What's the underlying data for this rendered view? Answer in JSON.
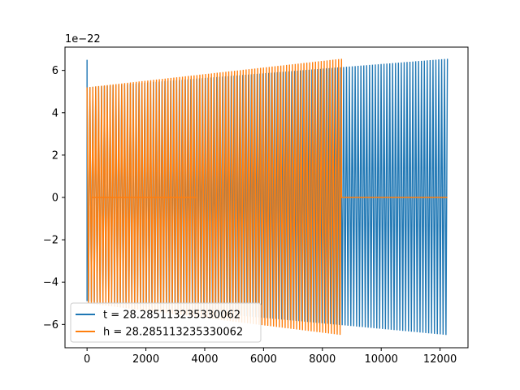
{
  "chart_data": {
    "type": "line",
    "title": "",
    "xlabel": "",
    "ylabel": "",
    "offset_text": "1e−22",
    "xlim": [
      -750,
      12950
    ],
    "ylim": [
      -7.1e-22,
      7.1e-22
    ],
    "xticks": [
      0,
      2000,
      4000,
      6000,
      8000,
      10000,
      12000
    ],
    "xtick_labels": [
      "0",
      "2000",
      "4000",
      "6000",
      "8000",
      "10000",
      "12000"
    ],
    "yticks": [
      -6e-22,
      -4e-22,
      -2e-22,
      0,
      2e-22,
      4e-22,
      6e-22
    ],
    "ytick_labels": [
      "−6",
      "−4",
      "−2",
      "0",
      "2",
      "4",
      "6"
    ],
    "grid": false,
    "legend_position": "lower left",
    "series": [
      {
        "name": "t = 28.285113235330062",
        "color": "#1f77b4",
        "description_points": {
          "x_start": 0,
          "x_end": 12250,
          "initial_spike": 6.5e-22,
          "envelope_start": 5.2e-22,
          "envelope_end": 6.55e-22,
          "envelope_low_start": -4.9e-22,
          "envelope_low_end": -6.5e-22,
          "cycles": 125
        }
      },
      {
        "name": "h = 28.285113235330062",
        "color": "#ff7f0e",
        "description_points": {
          "x_start": 0,
          "x_end": 8650,
          "envelope_start": 5.2e-22,
          "envelope_end": 6.55e-22,
          "envelope_low_start": -5e-22,
          "envelope_low_end": -6.5e-22,
          "cycles": 88,
          "flat_after_x": 8650,
          "flat_until_x": 12250
        }
      }
    ]
  }
}
